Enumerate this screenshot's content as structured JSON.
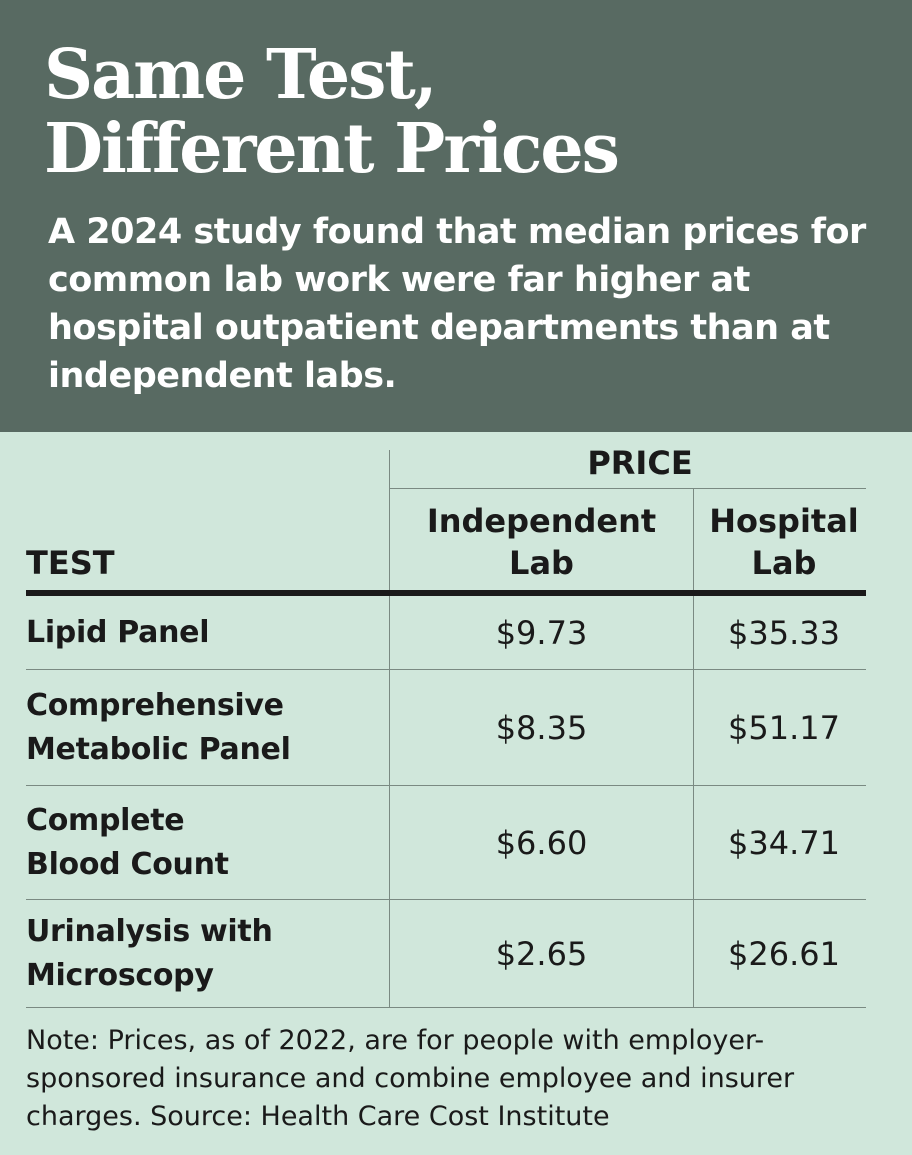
{
  "header": {
    "title_line1": "Same Test,",
    "title_line2": "Different Prices",
    "subtitle": "A 2024 study found that median prices for common lab work were far higher at hospital outpatient departments than at independent labs."
  },
  "table": {
    "group_header": "PRICE",
    "test_header": "TEST",
    "col1_line1": "Independent",
    "col1_line2": "Lab",
    "col2_line1": "Hospital",
    "col2_line2": "Lab"
  },
  "chart_data": {
    "type": "table",
    "columns": [
      "TEST",
      "Independent Lab",
      "Hospital Lab"
    ],
    "rows": [
      {
        "test": [
          "Lipid Panel"
        ],
        "independent": "$9.73",
        "hospital": "$35.33"
      },
      {
        "test": [
          "Comprehensive",
          "Metabolic Panel"
        ],
        "independent": "$8.35",
        "hospital": "$51.17"
      },
      {
        "test": [
          "Complete",
          "Blood Count"
        ],
        "independent": "$6.60",
        "hospital": "$34.71"
      },
      {
        "test": [
          "Urinalysis with",
          "Microscopy"
        ],
        "independent": "$2.65",
        "hospital": "$26.61"
      }
    ]
  },
  "footer": {
    "note": "Note: Prices, as of 2022, are for people with employer-sponsored insurance and combine employee and insurer charges. Source: Health Care Cost Institute"
  }
}
